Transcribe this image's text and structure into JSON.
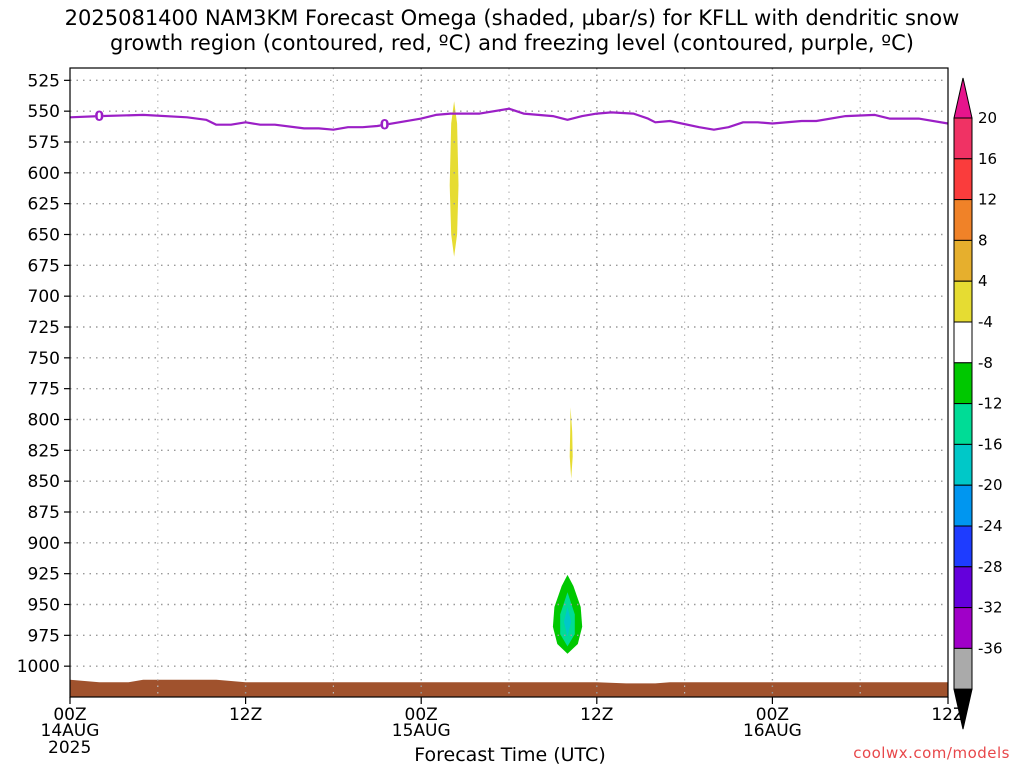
{
  "title": {
    "line1": "2025081400 NAM3KM Forecast Omega (shaded, µbar/s) for KFLL with dendritic snow",
    "line2": "growth region (contoured, red, ºC) and freezing level (contoured, purple, ºC)"
  },
  "credit": "coolwx.com/models",
  "colors": {
    "freezing_line": "#9b1fc6",
    "terrain": "#a0522d",
    "grid": "#999999"
  },
  "chart_data": {
    "type": "contour_timeseries",
    "xlabel": "Forecast Time (UTC)",
    "x_range_hours": [
      0,
      60
    ],
    "x_ticks": [
      {
        "h": 0,
        "l1": "00Z",
        "l2": "14AUG",
        "l3": "2025"
      },
      {
        "h": 12,
        "l1": "12Z",
        "l2": "",
        "l3": ""
      },
      {
        "h": 24,
        "l1": "00Z",
        "l2": "15AUG",
        "l3": ""
      },
      {
        "h": 36,
        "l1": "12Z",
        "l2": "",
        "l3": ""
      },
      {
        "h": 48,
        "l1": "00Z",
        "l2": "16AUG",
        "l3": ""
      },
      {
        "h": 60,
        "l1": "12Z",
        "l2": "",
        "l3": ""
      }
    ],
    "y_range_hpa": [
      1025,
      515
    ],
    "y_ticks": [
      525,
      550,
      575,
      600,
      625,
      650,
      675,
      700,
      725,
      750,
      775,
      800,
      825,
      850,
      875,
      900,
      925,
      950,
      975,
      1000
    ],
    "freezing_level_label": "0",
    "freezing_level": [
      {
        "h": 0,
        "p": 555
      },
      {
        "h": 2,
        "p": 554
      },
      {
        "h": 5,
        "p": 553
      },
      {
        "h": 8,
        "p": 555
      },
      {
        "h": 9.3,
        "p": 557
      },
      {
        "h": 10,
        "p": 561
      },
      {
        "h": 11,
        "p": 561
      },
      {
        "h": 12,
        "p": 559
      },
      {
        "h": 13,
        "p": 561
      },
      {
        "h": 14,
        "p": 561
      },
      {
        "h": 16,
        "p": 564
      },
      {
        "h": 17,
        "p": 564
      },
      {
        "h": 18,
        "p": 565
      },
      {
        "h": 19,
        "p": 563
      },
      {
        "h": 20,
        "p": 563
      },
      {
        "h": 21,
        "p": 562
      },
      {
        "h": 24,
        "p": 556
      },
      {
        "h": 25,
        "p": 553
      },
      {
        "h": 26,
        "p": 552
      },
      {
        "h": 28,
        "p": 552
      },
      {
        "h": 30,
        "p": 548
      },
      {
        "h": 31,
        "p": 552
      },
      {
        "h": 33,
        "p": 554
      },
      {
        "h": 34,
        "p": 557
      },
      {
        "h": 35,
        "p": 554
      },
      {
        "h": 36,
        "p": 552
      },
      {
        "h": 37,
        "p": 551
      },
      {
        "h": 38.5,
        "p": 552
      },
      {
        "h": 39.5,
        "p": 556
      },
      {
        "h": 40,
        "p": 559
      },
      {
        "h": 41,
        "p": 558
      },
      {
        "h": 43,
        "p": 563
      },
      {
        "h": 44,
        "p": 565
      },
      {
        "h": 45,
        "p": 563
      },
      {
        "h": 46,
        "p": 559
      },
      {
        "h": 47,
        "p": 559
      },
      {
        "h": 48,
        "p": 560
      },
      {
        "h": 50,
        "p": 558
      },
      {
        "h": 51,
        "p": 558
      },
      {
        "h": 53,
        "p": 554
      },
      {
        "h": 55,
        "p": 553
      },
      {
        "h": 56,
        "p": 556
      },
      {
        "h": 58,
        "p": 556
      },
      {
        "h": 60,
        "p": 560
      }
    ],
    "freezing_level_label_positions_h": [
      2,
      21.5
    ],
    "omega_areas": [
      {
        "name": "upward-4-8",
        "range": "4 to 8",
        "color": "#e6dc32",
        "polygon": [
          [
            26.25,
            542
          ],
          [
            26.45,
            560
          ],
          [
            26.55,
            610
          ],
          [
            26.45,
            650
          ],
          [
            26.25,
            668
          ],
          [
            26.05,
            650
          ],
          [
            25.95,
            610
          ],
          [
            26.05,
            560
          ]
        ]
      },
      {
        "name": "upward-4-8-low",
        "range": "4 to 8",
        "color": "#e6dc32",
        "polygon": [
          [
            34.2,
            790
          ],
          [
            34.32,
            810
          ],
          [
            34.35,
            830
          ],
          [
            34.25,
            848
          ],
          [
            34.15,
            830
          ],
          [
            34.18,
            810
          ]
        ]
      },
      {
        "name": "downward-4-8",
        "range": "-4 to -8",
        "color": "#00c800",
        "polygon": [
          [
            34.0,
            926
          ],
          [
            34.4,
            935
          ],
          [
            34.9,
            952
          ],
          [
            35.0,
            968
          ],
          [
            34.7,
            982
          ],
          [
            34.0,
            990
          ],
          [
            33.3,
            982
          ],
          [
            33.0,
            968
          ],
          [
            33.1,
            952
          ],
          [
            33.6,
            935
          ]
        ]
      },
      {
        "name": "downward-8-12",
        "range": "-8 to -12",
        "color": "#00dc96",
        "polygon": [
          [
            34.0,
            940
          ],
          [
            34.5,
            958
          ],
          [
            34.5,
            974
          ],
          [
            34.0,
            984
          ],
          [
            33.5,
            974
          ],
          [
            33.5,
            958
          ]
        ]
      },
      {
        "name": "downward-12-16",
        "range": "-12 to -16",
        "color": "#00c8c8",
        "polygon": [
          [
            34.0,
            952
          ],
          [
            34.25,
            964
          ],
          [
            34.0,
            976
          ],
          [
            33.75,
            964
          ]
        ]
      }
    ],
    "terrain": [
      {
        "h": 0,
        "p": 1011
      },
      {
        "h": 1,
        "p": 1012
      },
      {
        "h": 2,
        "p": 1013
      },
      {
        "h": 4,
        "p": 1013
      },
      {
        "h": 5,
        "p": 1011
      },
      {
        "h": 10,
        "p": 1011
      },
      {
        "h": 11,
        "p": 1012
      },
      {
        "h": 12,
        "p": 1013
      },
      {
        "h": 36,
        "p": 1013
      },
      {
        "h": 38,
        "p": 1014
      },
      {
        "h": 40,
        "p": 1014
      },
      {
        "h": 41,
        "p": 1013
      },
      {
        "h": 60,
        "p": 1013
      }
    ],
    "colorbar": {
      "labels": [
        "20",
        "16",
        "12",
        "8",
        "4",
        "-4",
        "-8",
        "-12",
        "-16",
        "-20",
        "-24",
        "-28",
        "-32",
        "-36"
      ],
      "colors": [
        "#f03264",
        "#fa3c3c",
        "#f08228",
        "#e6af2d",
        "#e6dc32",
        "#ffffff",
        "#00c800",
        "#00dc96",
        "#00c8c8",
        "#0096f0",
        "#1e3cff",
        "#6400dc",
        "#a000c8",
        "#aaaaaa"
      ],
      "top_color": "#e6148c",
      "bottom_color": "#000000"
    }
  }
}
